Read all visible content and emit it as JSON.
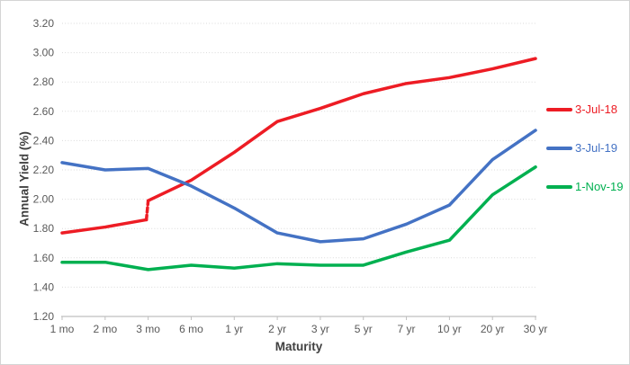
{
  "chart_data": {
    "type": "line",
    "categories": [
      "1 mo",
      "2 mo",
      "3 mo",
      "6 mo",
      "1 yr",
      "2 yr",
      "3 yr",
      "5 yr",
      "7 yr",
      "10 yr",
      "20 yr",
      "30 yr"
    ],
    "series": [
      {
        "name": "3-Jul-18",
        "color": "#ED1C24",
        "values": [
          1.77,
          1.81,
          1.86,
          2.13,
          2.32,
          2.53,
          2.62,
          2.72,
          2.79,
          2.83,
          2.89,
          2.96
        ],
        "discontinuity": {
          "category": "3 mo",
          "from": 1.86,
          "to": 1.99,
          "style": "dashed"
        }
      },
      {
        "name": "3-Jul-19",
        "color": "#4472C4",
        "values": [
          2.25,
          2.2,
          2.21,
          2.09,
          1.94,
          1.77,
          1.71,
          1.73,
          1.83,
          1.96,
          2.27,
          2.47
        ]
      },
      {
        "name": "1-Nov-19",
        "color": "#00B050",
        "values": [
          1.57,
          1.57,
          1.52,
          1.55,
          1.53,
          1.56,
          1.55,
          1.55,
          1.64,
          1.72,
          2.03,
          2.22
        ]
      }
    ],
    "xlabel": "Maturity",
    "ylabel": "Annual Yield (%)",
    "ylim": [
      1.2,
      3.2
    ],
    "yticks": [
      "1.20",
      "1.40",
      "1.60",
      "1.80",
      "2.00",
      "2.20",
      "2.40",
      "2.60",
      "2.80",
      "3.00",
      "3.20"
    ],
    "grid": "horizontal-dotted",
    "legend_position": "right",
    "style_colors": {
      "gridline": "#D9D9D9",
      "axis_line": "#BFBFBF",
      "tick_label": "#595959",
      "axis_title": "#404040"
    }
  }
}
